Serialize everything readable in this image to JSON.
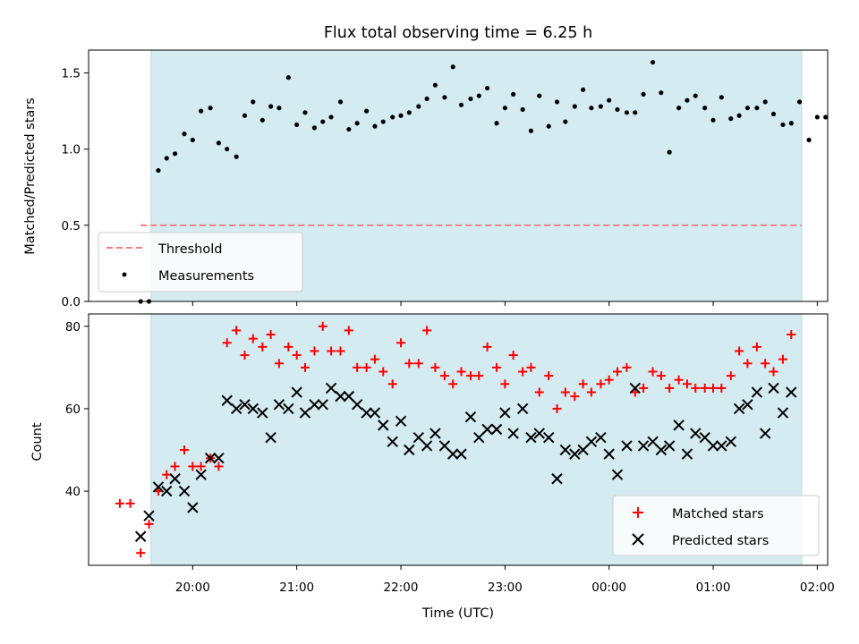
{
  "chart_data": [
    {
      "type": "scatter",
      "title": "Flux total observing time = 6.25 h",
      "ylabel": "Matched/Predicted stars",
      "xlabel": "",
      "ylim": [
        0,
        1.65
      ],
      "yticks": [
        "0.0",
        "0.5",
        "1.0",
        "1.5"
      ],
      "yticks_values": [
        0,
        0.5,
        1.0,
        1.5
      ],
      "observing_window_hours": [
        19.6,
        25.85
      ],
      "window_color": "#d4ebf1",
      "threshold": {
        "name": "Threshold",
        "value": 0.5,
        "x_range": [
          19.5,
          25.85
        ],
        "color": "#f08080"
      },
      "legend_position": "lower-left",
      "series": [
        {
          "name": "Measurements",
          "color": "#000000",
          "marker": "dot",
          "points": [
            [
              19.5,
              0.0
            ],
            [
              19.58,
              0.0
            ],
            [
              19.67,
              0.86
            ],
            [
              19.75,
              0.94
            ],
            [
              19.83,
              0.97
            ],
            [
              19.92,
              1.1
            ],
            [
              20.0,
              1.06
            ],
            [
              20.08,
              1.25
            ],
            [
              20.17,
              1.27
            ],
            [
              20.25,
              1.04
            ],
            [
              20.33,
              1.0
            ],
            [
              20.42,
              0.95
            ],
            [
              20.5,
              1.22
            ],
            [
              20.58,
              1.31
            ],
            [
              20.67,
              1.19
            ],
            [
              20.75,
              1.28
            ],
            [
              20.83,
              1.27
            ],
            [
              20.92,
              1.47
            ],
            [
              21.0,
              1.16
            ],
            [
              21.08,
              1.24
            ],
            [
              21.17,
              1.14
            ],
            [
              21.25,
              1.18
            ],
            [
              21.33,
              1.21
            ],
            [
              21.42,
              1.31
            ],
            [
              21.5,
              1.13
            ],
            [
              21.58,
              1.17
            ],
            [
              21.67,
              1.25
            ],
            [
              21.75,
              1.15
            ],
            [
              21.83,
              1.18
            ],
            [
              21.92,
              1.21
            ],
            [
              22.0,
              1.22
            ],
            [
              22.08,
              1.24
            ],
            [
              22.17,
              1.28
            ],
            [
              22.25,
              1.33
            ],
            [
              22.33,
              1.42
            ],
            [
              22.42,
              1.34
            ],
            [
              22.5,
              1.54
            ],
            [
              22.58,
              1.29
            ],
            [
              22.67,
              1.33
            ],
            [
              22.75,
              1.35
            ],
            [
              22.83,
              1.4
            ],
            [
              22.92,
              1.17
            ],
            [
              23.0,
              1.27
            ],
            [
              23.08,
              1.36
            ],
            [
              23.17,
              1.26
            ],
            [
              23.25,
              1.12
            ],
            [
              23.33,
              1.35
            ],
            [
              23.42,
              1.15
            ],
            [
              23.5,
              1.31
            ],
            [
              23.58,
              1.18
            ],
            [
              23.67,
              1.28
            ],
            [
              23.75,
              1.39
            ],
            [
              23.83,
              1.27
            ],
            [
              23.92,
              1.28
            ],
            [
              24.0,
              1.32
            ],
            [
              24.08,
              1.26
            ],
            [
              24.17,
              1.24
            ],
            [
              24.25,
              1.24
            ],
            [
              24.33,
              1.36
            ],
            [
              24.42,
              1.57
            ],
            [
              24.5,
              1.37
            ],
            [
              24.58,
              0.98
            ],
            [
              24.67,
              1.27
            ],
            [
              24.75,
              1.32
            ],
            [
              24.83,
              1.35
            ],
            [
              24.92,
              1.27
            ],
            [
              25.0,
              1.19
            ],
            [
              25.08,
              1.34
            ],
            [
              25.17,
              1.2
            ],
            [
              25.25,
              1.22
            ],
            [
              25.33,
              1.27
            ],
            [
              25.42,
              1.27
            ],
            [
              25.5,
              1.31
            ],
            [
              25.58,
              1.23
            ],
            [
              25.67,
              1.16
            ],
            [
              25.75,
              1.17
            ],
            [
              25.83,
              1.31
            ],
            [
              25.92,
              1.06
            ],
            [
              26.0,
              1.21
            ],
            [
              26.08,
              1.21
            ]
          ]
        }
      ]
    },
    {
      "type": "scatter",
      "title": "",
      "xlabel": "Time (UTC)",
      "ylabel": "Count",
      "ylim": [
        22,
        83
      ],
      "yticks": [
        "40",
        "60",
        "80"
      ],
      "yticks_values": [
        40,
        60,
        80
      ],
      "xlim": [
        19.0,
        26.1
      ],
      "xticks": [
        "20:00",
        "21:00",
        "22:00",
        "23:00",
        "00:00",
        "01:00",
        "02:00"
      ],
      "xticks_values": [
        20,
        21,
        22,
        23,
        24,
        25,
        26
      ],
      "legend_position": "lower-right",
      "series": [
        {
          "name": "Matched stars",
          "color": "#ff0000",
          "marker": "plus",
          "points": [
            [
              19.3,
              37
            ],
            [
              19.4,
              37
            ],
            [
              19.5,
              25
            ],
            [
              19.58,
              32
            ],
            [
              19.67,
              40
            ],
            [
              19.75,
              44
            ],
            [
              19.83,
              46
            ],
            [
              19.92,
              50
            ],
            [
              20.0,
              46
            ],
            [
              20.08,
              46
            ],
            [
              20.17,
              48
            ],
            [
              20.25,
              46
            ],
            [
              20.33,
              76
            ],
            [
              20.42,
              79
            ],
            [
              20.5,
              73
            ],
            [
              20.58,
              77
            ],
            [
              20.67,
              75
            ],
            [
              20.75,
              78
            ],
            [
              20.83,
              71
            ],
            [
              20.92,
              75
            ],
            [
              21.0,
              73
            ],
            [
              21.08,
              70
            ],
            [
              21.17,
              74
            ],
            [
              21.25,
              80
            ],
            [
              21.33,
              74
            ],
            [
              21.42,
              74
            ],
            [
              21.5,
              79
            ],
            [
              21.58,
              70
            ],
            [
              21.67,
              70
            ],
            [
              21.75,
              72
            ],
            [
              21.83,
              69
            ],
            [
              21.92,
              66
            ],
            [
              22.0,
              76
            ],
            [
              22.08,
              71
            ],
            [
              22.17,
              71
            ],
            [
              22.25,
              79
            ],
            [
              22.33,
              70
            ],
            [
              22.42,
              68
            ],
            [
              22.5,
              66
            ],
            [
              22.58,
              69
            ],
            [
              22.67,
              68
            ],
            [
              22.75,
              68
            ],
            [
              22.83,
              75
            ],
            [
              22.92,
              70
            ],
            [
              23.0,
              66
            ],
            [
              23.08,
              73
            ],
            [
              23.17,
              69
            ],
            [
              23.25,
              70
            ],
            [
              23.33,
              64
            ],
            [
              23.42,
              68
            ],
            [
              23.5,
              60
            ],
            [
              23.58,
              64
            ],
            [
              23.67,
              63
            ],
            [
              23.75,
              66
            ],
            [
              23.83,
              64
            ],
            [
              23.92,
              66
            ],
            [
              24.0,
              67
            ],
            [
              24.08,
              69
            ],
            [
              24.17,
              70
            ],
            [
              24.25,
              64
            ],
            [
              24.33,
              65
            ],
            [
              24.42,
              69
            ],
            [
              24.5,
              68
            ],
            [
              24.58,
              65
            ],
            [
              24.67,
              67
            ],
            [
              24.75,
              66
            ],
            [
              24.83,
              65
            ],
            [
              24.92,
              65
            ],
            [
              25.0,
              65
            ],
            [
              25.08,
              65
            ],
            [
              25.17,
              68
            ],
            [
              25.25,
              74
            ],
            [
              25.33,
              71
            ],
            [
              25.42,
              75
            ],
            [
              25.5,
              71
            ],
            [
              25.58,
              69
            ],
            [
              25.67,
              72
            ],
            [
              25.75,
              78
            ]
          ]
        },
        {
          "name": "Predicted stars",
          "color": "#000000",
          "marker": "x",
          "points": [
            [
              19.5,
              29
            ],
            [
              19.58,
              34
            ],
            [
              19.67,
              41
            ],
            [
              19.75,
              40
            ],
            [
              19.83,
              43
            ],
            [
              19.92,
              40
            ],
            [
              20.0,
              36
            ],
            [
              20.08,
              44
            ],
            [
              20.17,
              48
            ],
            [
              20.25,
              48
            ],
            [
              20.33,
              62
            ],
            [
              20.42,
              60
            ],
            [
              20.5,
              61
            ],
            [
              20.58,
              60
            ],
            [
              20.67,
              59
            ],
            [
              20.75,
              53
            ],
            [
              20.83,
              61
            ],
            [
              20.92,
              60
            ],
            [
              21.0,
              64
            ],
            [
              21.08,
              59
            ],
            [
              21.17,
              61
            ],
            [
              21.25,
              61
            ],
            [
              21.33,
              65
            ],
            [
              21.42,
              63
            ],
            [
              21.5,
              63
            ],
            [
              21.58,
              61
            ],
            [
              21.67,
              59
            ],
            [
              21.75,
              59
            ],
            [
              21.83,
              56
            ],
            [
              21.92,
              52
            ],
            [
              22.0,
              57
            ],
            [
              22.08,
              50
            ],
            [
              22.17,
              53
            ],
            [
              22.25,
              51
            ],
            [
              22.33,
              54
            ],
            [
              22.42,
              51
            ],
            [
              22.5,
              49
            ],
            [
              22.58,
              49
            ],
            [
              22.67,
              58
            ],
            [
              22.75,
              53
            ],
            [
              22.83,
              55
            ],
            [
              22.92,
              55
            ],
            [
              23.0,
              59
            ],
            [
              23.08,
              54
            ],
            [
              23.17,
              60
            ],
            [
              23.25,
              53
            ],
            [
              23.33,
              54
            ],
            [
              23.42,
              53
            ],
            [
              23.5,
              43
            ],
            [
              23.58,
              50
            ],
            [
              23.67,
              49
            ],
            [
              23.75,
              50
            ],
            [
              23.83,
              52
            ],
            [
              23.92,
              53
            ],
            [
              24.0,
              49
            ],
            [
              24.08,
              44
            ],
            [
              24.17,
              51
            ],
            [
              24.25,
              65
            ],
            [
              24.33,
              51
            ],
            [
              24.42,
              52
            ],
            [
              24.5,
              50
            ],
            [
              24.58,
              51
            ],
            [
              24.67,
              56
            ],
            [
              24.75,
              49
            ],
            [
              24.83,
              54
            ],
            [
              24.92,
              53
            ],
            [
              25.0,
              51
            ],
            [
              25.08,
              51
            ],
            [
              25.17,
              52
            ],
            [
              25.25,
              60
            ],
            [
              25.33,
              61
            ],
            [
              25.42,
              64
            ],
            [
              25.5,
              54
            ],
            [
              25.58,
              65
            ],
            [
              25.67,
              59
            ],
            [
              25.75,
              64
            ]
          ]
        }
      ]
    }
  ]
}
